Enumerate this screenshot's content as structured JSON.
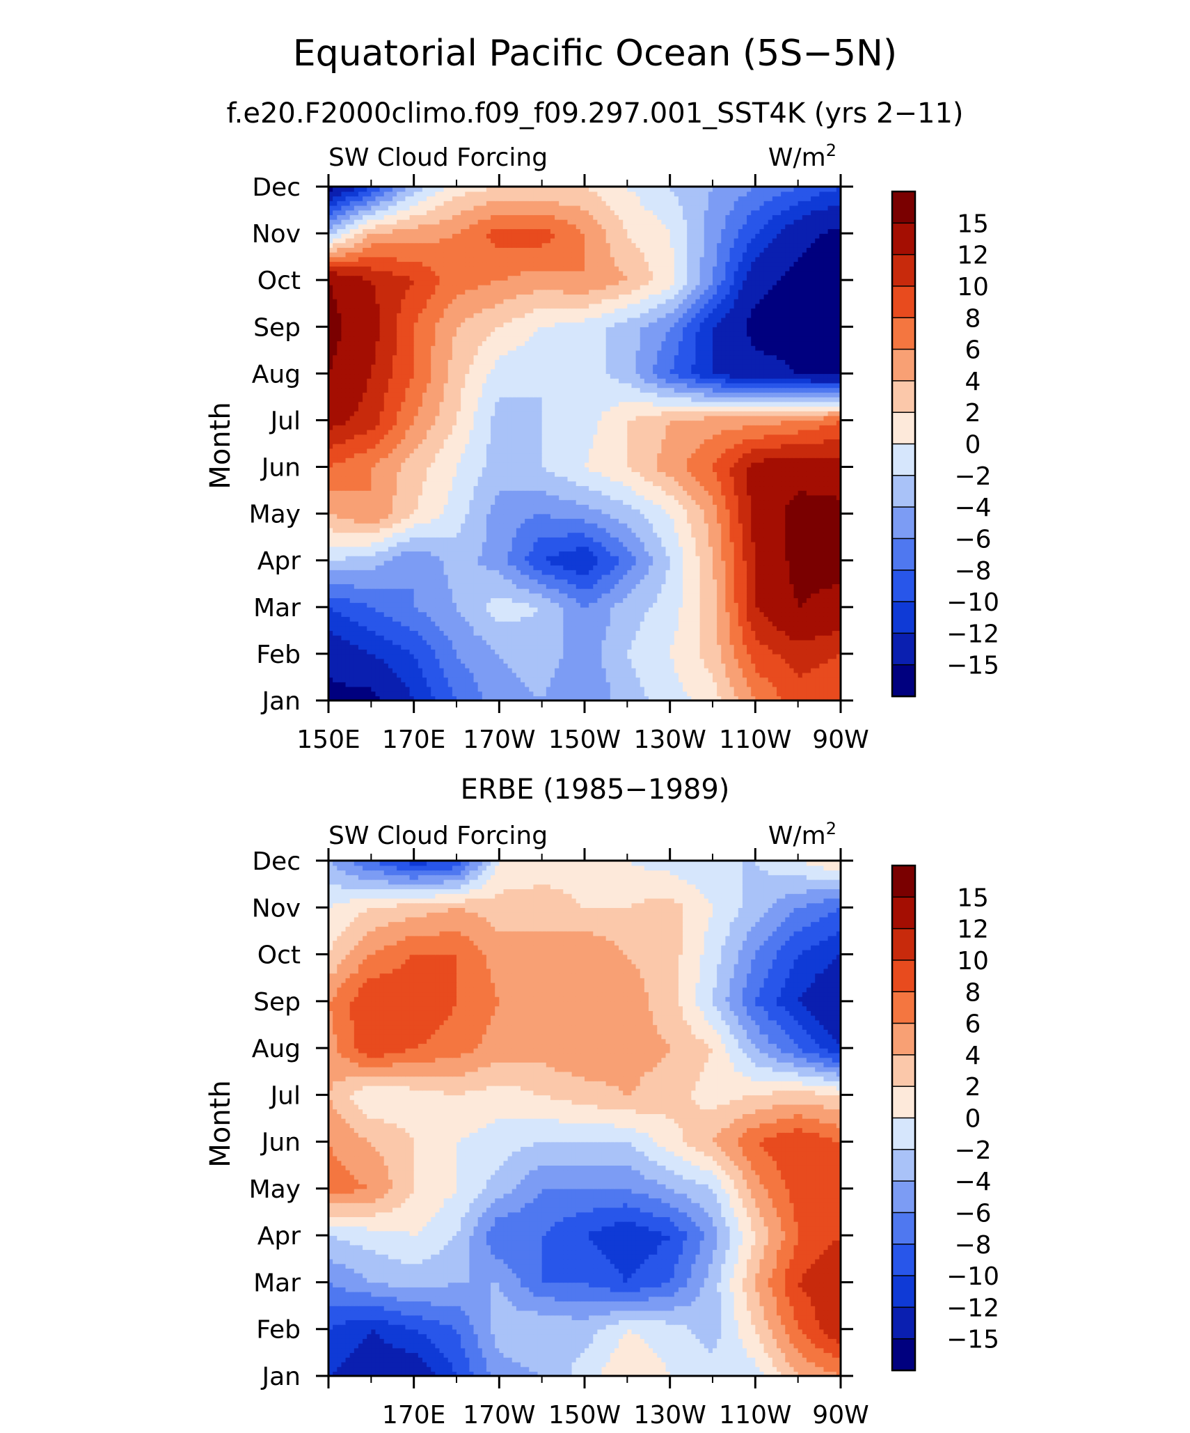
{
  "figure": {
    "title": "Equatorial Pacific Ocean (5S−5N)",
    "subtitle": "f.e20.F2000climo.f09_f09.297.001_SST4K (yrs 2−11)"
  },
  "colorbar": {
    "levels": [
      -15,
      -12,
      -10,
      -8,
      -6,
      -4,
      -2,
      0,
      2,
      4,
      6,
      8,
      10,
      12,
      15
    ],
    "labels": [
      "15",
      "12",
      "10",
      "8",
      "6",
      "4",
      "2",
      "0",
      "−2",
      "−4",
      "−6",
      "−8",
      "−10",
      "−12",
      "−15"
    ],
    "colors": [
      "#00007f",
      "#0a1fb0",
      "#0f3ad6",
      "#2856ea",
      "#4f78f0",
      "#7c9cf4",
      "#a9c2f8",
      "#d6e6fc",
      "#fde9da",
      "#fbc8aa",
      "#f8a074",
      "#f47640",
      "#e84b1e",
      "#c82a0c",
      "#a40e02",
      "#7a0000"
    ]
  },
  "panels": [
    {
      "title": "",
      "left_label": "SW Cloud Forcing",
      "right_label_base": "W/m",
      "right_label_sup": "2",
      "ylabel": "Month",
      "y_ticks": [
        "Jan",
        "Feb",
        "Mar",
        "Apr",
        "May",
        "Jun",
        "Jul",
        "Aug",
        "Sep",
        "Oct",
        "Nov",
        "Dec"
      ],
      "x_ticks": [
        "150E",
        "170E",
        "170W",
        "150W",
        "130W",
        "110W",
        "90W"
      ]
    },
    {
      "title": "ERBE (1985−1989)",
      "left_label": "SW Cloud Forcing",
      "right_label_base": "W/m",
      "right_label_sup": "2",
      "ylabel": "Month",
      "y_ticks": [
        "Jan",
        "Feb",
        "Mar",
        "Apr",
        "May",
        "Jun",
        "Jul",
        "Aug",
        "Sep",
        "Oct",
        "Nov",
        "Dec"
      ],
      "x_ticks": [
        "",
        "170E",
        "170W",
        "150W",
        "130W",
        "110W",
        "90W"
      ]
    }
  ],
  "chart_data": [
    {
      "type": "heatmap",
      "title": "",
      "ylabel": "Month",
      "colorbar_label": "W/m2",
      "x": [
        150,
        160,
        170,
        180,
        190,
        200,
        210,
        220,
        230,
        240,
        250,
        260,
        270
      ],
      "x_tick_labels": [
        "150E",
        "170E",
        "170W",
        "150W",
        "130W",
        "110W",
        "90W"
      ],
      "y": [
        "Jan",
        "Feb",
        "Mar",
        "Apr",
        "May",
        "Jun",
        "Jul",
        "Aug",
        "Sep",
        "Oct",
        "Nov",
        "Dec"
      ],
      "xlim": [
        150,
        270
      ],
      "z": [
        [
          -16,
          -16,
          -12,
          -8,
          -5,
          -4,
          -6,
          -3,
          -1,
          1,
          6,
          9,
          8
        ],
        [
          -14,
          -12,
          -10,
          -6,
          -4,
          -3,
          -5,
          -2,
          0,
          3,
          9,
          11,
          10
        ],
        [
          -10,
          -8,
          -6,
          -4,
          -1,
          -2,
          -6,
          -3,
          -1,
          3,
          12,
          15,
          14
        ],
        [
          -2,
          -3,
          -6,
          -3,
          -5,
          -10,
          -12,
          -7,
          -2,
          4,
          12,
          16,
          16
        ],
        [
          4,
          6,
          2,
          -1,
          -5,
          -6,
          -5,
          -3,
          0,
          5,
          13,
          16,
          16
        ],
        [
          8,
          6,
          3,
          0,
          -3,
          -2,
          0,
          2,
          5,
          8,
          13,
          14,
          13
        ],
        [
          13,
          11,
          6,
          2,
          -3,
          -2,
          -1,
          2,
          4,
          5,
          5,
          6,
          8
        ],
        [
          15,
          12,
          8,
          3,
          -1,
          -2,
          -1,
          -3,
          -8,
          -12,
          -14,
          -15,
          -16
        ],
        [
          16,
          13,
          8,
          4,
          2,
          0,
          -1,
          -3,
          -6,
          -12,
          -16,
          -16,
          -16
        ],
        [
          15,
          12,
          10,
          7,
          6,
          5,
          6,
          4,
          1,
          -6,
          -14,
          -16,
          -16
        ],
        [
          -3,
          4,
          5,
          6,
          9,
          9,
          6,
          2,
          0,
          -5,
          -10,
          -14,
          -16
        ],
        [
          -16,
          -10,
          -3,
          1,
          2,
          2,
          2,
          0,
          -2,
          -4,
          -6,
          -8,
          -10
        ]
      ]
    },
    {
      "type": "heatmap",
      "title": "ERBE (1985−1989)",
      "ylabel": "Month",
      "colorbar_label": "W/m2",
      "x": [
        150,
        160,
        170,
        180,
        190,
        200,
        210,
        220,
        230,
        240,
        250,
        260,
        270
      ],
      "x_tick_labels": [
        "170E",
        "170W",
        "150W",
        "130W",
        "110W",
        "90W"
      ],
      "y": [
        "Jan",
        "Feb",
        "Mar",
        "Apr",
        "May",
        "Jun",
        "Jul",
        "Aug",
        "Sep",
        "Oct",
        "Nov",
        "Dec"
      ],
      "xlim": [
        150,
        270
      ],
      "z": [
        [
          -12,
          -14,
          -14,
          -10,
          -5,
          -4,
          -1,
          2,
          0,
          -1,
          -1,
          4,
          6
        ],
        [
          -10,
          -12,
          -10,
          -8,
          -3,
          -2,
          -3,
          0,
          -1,
          -3,
          2,
          8,
          12
        ],
        [
          -6,
          -4,
          -3,
          -4,
          -4,
          -8,
          -8,
          -10,
          -8,
          -3,
          4,
          10,
          12
        ],
        [
          -2,
          -1,
          0,
          -2,
          -8,
          -8,
          -10,
          -12,
          -10,
          -5,
          2,
          8,
          10
        ],
        [
          7,
          6,
          2,
          0,
          -3,
          -6,
          -6,
          -6,
          -4,
          -2,
          5,
          9,
          9
        ],
        [
          6,
          4,
          2,
          0,
          -1,
          -2,
          -2,
          -2,
          1,
          4,
          8,
          10,
          8
        ],
        [
          4,
          0,
          1,
          2,
          1,
          2,
          3,
          4,
          3,
          1,
          2,
          3,
          2
        ],
        [
          5,
          10,
          8,
          7,
          5,
          5,
          6,
          5,
          4,
          2,
          -4,
          -8,
          -12
        ],
        [
          6,
          10,
          10,
          8,
          6,
          6,
          6,
          5,
          3,
          -2,
          -8,
          -12,
          -15
        ],
        [
          2,
          6,
          8,
          8,
          5,
          5,
          6,
          4,
          3,
          -1,
          -6,
          -10,
          -12
        ],
        [
          0,
          2,
          3,
          4,
          3,
          3,
          2,
          2,
          3,
          0,
          -3,
          -6,
          -8
        ],
        [
          -4,
          -8,
          -11,
          -10,
          0,
          1,
          1,
          0,
          -1,
          -2,
          -2,
          0,
          2
        ]
      ]
    }
  ]
}
